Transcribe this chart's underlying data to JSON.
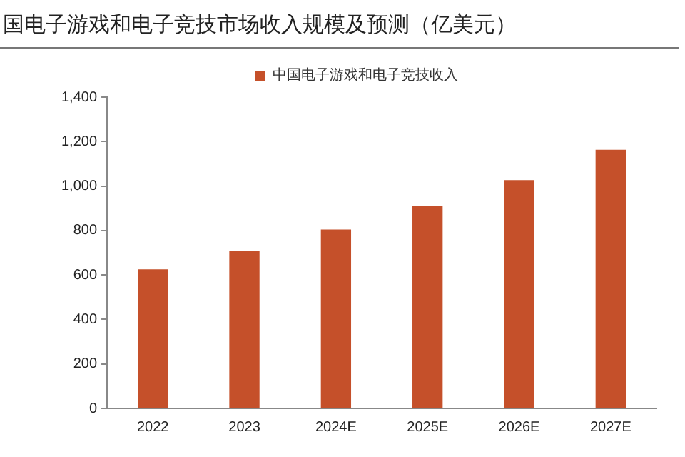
{
  "chart_data": {
    "type": "bar",
    "title": "国电子游戏和电子竞技市场收入规模及预测（亿美元）",
    "categories": [
      "2022",
      "2023",
      "2024E",
      "2025E",
      "2026E",
      "2027E"
    ],
    "series": [
      {
        "name": "中国电子游戏和电子竞技收入",
        "color": "#c5502a",
        "values": [
          625,
          709,
          804,
          909,
          1027,
          1163
        ]
      }
    ],
    "ylim": [
      0,
      1400
    ],
    "yticks": [
      0,
      {
        "value": 200,
        "label": "200"
      },
      {
        "value": 400,
        "label": "400"
      },
      {
        "value": 600,
        "label": "600"
      },
      {
        "value": 800,
        "label": "800"
      },
      {
        "value": 1000,
        "label": "1,000"
      },
      {
        "value": 1200,
        "label": "1,200"
      },
      {
        "value": 1400,
        "label": "1,400"
      }
    ],
    "grid": false,
    "legend": "top"
  }
}
